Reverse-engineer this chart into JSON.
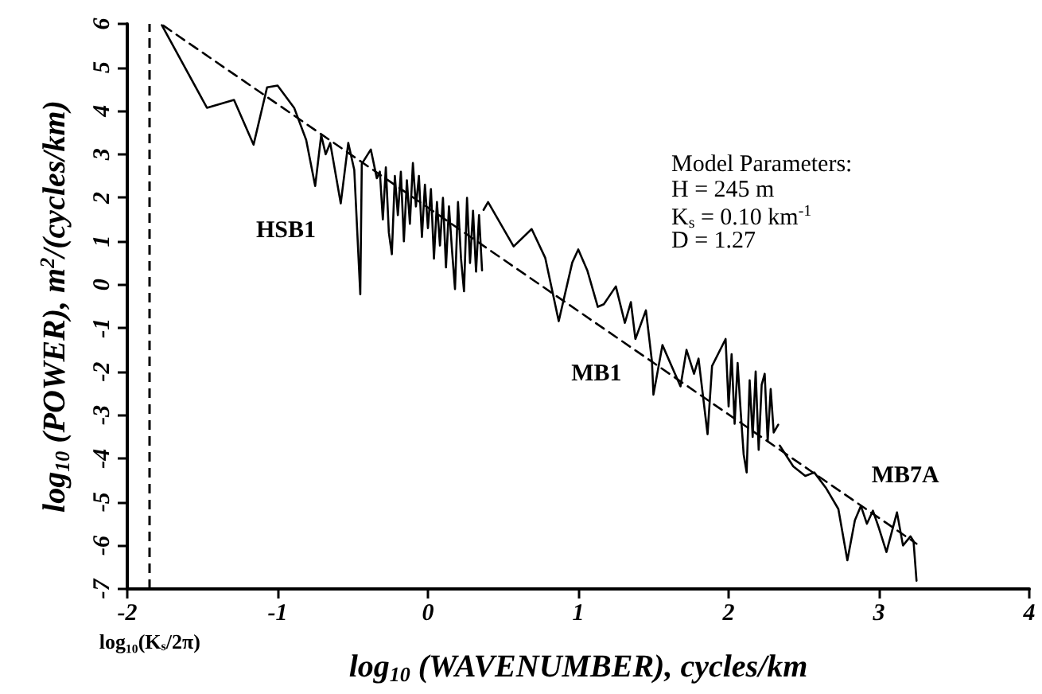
{
  "chart_data": {
    "type": "line",
    "xlabel": "log$_{10}$ (WAVENUMBER), cycles/km",
    "ylabel": "log$_{10}$ (POWER), m$^{2}$/(cycles/km)",
    "xlim": [
      -2,
      4
    ],
    "xticks": [
      -2,
      -1,
      0,
      1,
      2,
      3,
      4
    ],
    "ylim": [
      -7,
      6
    ],
    "yticks": [
      -7,
      -6,
      -5,
      -4,
      -3,
      -2,
      -1,
      0,
      1,
      2,
      3,
      4,
      5,
      6
    ],
    "series": [
      {
        "name": "HSB1",
        "color": "#000000",
        "x": [
          -1.77,
          -1.47,
          -1.29,
          -1.16,
          -1.07,
          -1.0,
          -0.89,
          -0.81,
          -0.75,
          -0.71,
          -0.68,
          -0.65,
          -0.58,
          -0.53,
          -0.49,
          -0.45,
          -0.44,
          -0.38,
          -0.34,
          -0.32,
          -0.3,
          -0.28,
          -0.26,
          -0.24,
          -0.22,
          -0.2,
          -0.18,
          -0.16,
          -0.14,
          -0.12,
          -0.1,
          -0.08,
          -0.06,
          -0.04,
          -0.02,
          0.0,
          0.02,
          0.04,
          0.06,
          0.08,
          0.1,
          0.12,
          0.14,
          0.16,
          0.18,
          0.2,
          0.22,
          0.24,
          0.26,
          0.28,
          0.3,
          0.32,
          0.34,
          0.36
        ],
        "values": [
          5.97,
          4.07,
          4.25,
          3.22,
          4.54,
          4.58,
          4.07,
          3.33,
          2.27,
          3.44,
          3.0,
          3.26,
          1.87,
          3.26,
          2.64,
          -0.22,
          2.78,
          3.11,
          2.45,
          2.6,
          1.5,
          2.7,
          1.2,
          0.7,
          2.5,
          1.6,
          2.6,
          1.0,
          2.4,
          1.4,
          2.8,
          1.8,
          2.5,
          1.1,
          2.3,
          1.3,
          2.2,
          0.6,
          1.9,
          0.9,
          2.0,
          0.4,
          1.8,
          0.8,
          -0.1,
          1.9,
          0.6,
          -0.15,
          2.0,
          0.5,
          1.7,
          0.3,
          1.6,
          0.33
        ]
      },
      {
        "name": "MB1",
        "color": "#000000",
        "x": [
          0.37,
          0.4,
          0.57,
          0.69,
          0.78,
          0.87,
          0.96,
          1.0,
          1.06,
          1.13,
          1.17,
          1.25,
          1.31,
          1.35,
          1.38,
          1.45,
          1.49,
          1.5,
          1.56,
          1.68,
          1.72,
          1.77,
          1.8,
          1.86,
          1.89,
          1.98,
          2.0,
          2.02,
          2.04,
          2.06,
          2.08,
          2.1,
          2.12,
          2.14,
          2.16,
          2.18,
          2.2,
          2.22,
          2.24,
          2.26,
          2.28,
          2.3,
          2.33
        ],
        "values": [
          1.72,
          1.9,
          0.88,
          1.28,
          0.62,
          -0.84,
          0.51,
          0.81,
          0.33,
          -0.51,
          -0.45,
          -0.04,
          -0.88,
          -0.4,
          -1.25,
          -0.59,
          -1.76,
          -2.53,
          -1.39,
          -2.34,
          -1.5,
          -2.05,
          -1.7,
          -3.44,
          -1.87,
          -1.25,
          -2.8,
          -1.6,
          -3.2,
          -1.8,
          -2.9,
          -3.9,
          -4.32,
          -2.2,
          -3.5,
          -2.0,
          -3.8,
          -2.3,
          -2.05,
          -3.6,
          -2.4,
          -3.4,
          -3.22
        ]
      },
      {
        "name": "MB7A",
        "color": "#000000",
        "x": [
          2.34,
          2.43,
          2.51,
          2.57,
          2.65,
          2.73,
          2.79,
          2.84,
          2.88,
          2.92,
          2.96,
          3.0,
          3.05,
          3.12,
          3.16,
          3.21,
          3.23,
          3.25
        ],
        "values": [
          -3.7,
          -4.18,
          -4.4,
          -4.32,
          -4.69,
          -5.16,
          -6.34,
          -5.42,
          -5.09,
          -5.5,
          -5.2,
          -5.6,
          -6.15,
          -5.24,
          -6.0,
          -5.79,
          -5.9,
          -6.81
        ]
      },
      {
        "color": "#000000",
        "line_style": "dashed",
        "x": [
          -1.76,
          3.25
        ],
        "values": [
          5.96,
          -5.96
        ]
      }
    ],
    "ref_lines": [
      {
        "axis": "x",
        "value": -1.85,
        "label": "log₁₀(K$_{s}$/2π)",
        "line_style": "dashed",
        "color": "#000000"
      }
    ],
    "annotations": [
      "Model Parameters:",
      "H = 245 m",
      "K$_{s}$ = 0.10 km$^{-1}$",
      "D = 1.27"
    ]
  }
}
